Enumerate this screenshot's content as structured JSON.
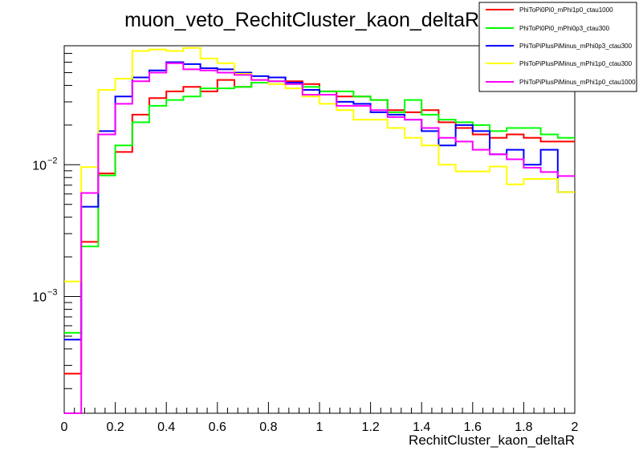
{
  "chart_data": {
    "type": "line",
    "title": "muon_veto_RechitCluster_kaon_deltaR_0",
    "xlabel": "RechitCluster_kaon_deltaR",
    "ylabel": "",
    "xlim": [
      0,
      2
    ],
    "ylim": [
      0.00013,
      0.08
    ],
    "yscale": "log",
    "grid": false,
    "legend_position": "top-right",
    "bin_edges": [
      0,
      0.0667,
      0.1333,
      0.2,
      0.2667,
      0.3333,
      0.4,
      0.4667,
      0.5333,
      0.6,
      0.6667,
      0.7333,
      0.8,
      0.8667,
      0.9333,
      1.0,
      1.0667,
      1.1333,
      1.2,
      1.2667,
      1.3333,
      1.4,
      1.4667,
      1.5333,
      1.6,
      1.6667,
      1.7333,
      1.8,
      1.8667,
      1.9333,
      2.0
    ],
    "x_ticks": [
      {
        "value": 0,
        "label": "0"
      },
      {
        "value": 0.2,
        "label": "0.2"
      },
      {
        "value": 0.4,
        "label": "0.4"
      },
      {
        "value": 0.6,
        "label": "0.6"
      },
      {
        "value": 0.8,
        "label": "0.8"
      },
      {
        "value": 1,
        "label": "1"
      },
      {
        "value": 1.2,
        "label": "1.2"
      },
      {
        "value": 1.4,
        "label": "1.4"
      },
      {
        "value": 1.6,
        "label": "1.6"
      },
      {
        "value": 1.8,
        "label": "1.8"
      },
      {
        "value": 2,
        "label": "2"
      }
    ],
    "y_ticks": [
      {
        "value": 0.001,
        "base": "10",
        "exp": "−3"
      },
      {
        "value": 0.01,
        "base": "10",
        "exp": "−2"
      }
    ],
    "series": [
      {
        "name": "PhiToPi0Pi0_mPhi1p0_ctau1000",
        "color": "#ff0000",
        "values": [
          0.00026,
          0.0026,
          0.0086,
          0.0125,
          0.024,
          0.032,
          0.036,
          0.039,
          0.036,
          0.044,
          0.039,
          0.042,
          0.046,
          0.043,
          0.041,
          0.036,
          0.033,
          0.033,
          0.031,
          0.026,
          0.025,
          0.026,
          0.021,
          0.019,
          0.017,
          0.016,
          0.017,
          0.016,
          0.015,
          0.015
        ]
      },
      {
        "name": "PhiToPi0Pi0_mPhi0p3_ctau300",
        "color": "#00ff00",
        "values": [
          0.00053,
          0.0024,
          0.0083,
          0.014,
          0.021,
          0.028,
          0.031,
          0.033,
          0.038,
          0.038,
          0.039,
          0.042,
          0.043,
          0.041,
          0.039,
          0.036,
          0.036,
          0.033,
          0.031,
          0.025,
          0.031,
          0.024,
          0.022,
          0.021,
          0.02,
          0.018,
          0.019,
          0.019,
          0.017,
          0.016
        ]
      },
      {
        "name": "PhiToPiPlusPiMinus_mPhi0p3_ctau300",
        "color": "#0000ff",
        "values": [
          0.00047,
          0.0048,
          0.018,
          0.033,
          0.046,
          0.052,
          0.06,
          0.058,
          0.054,
          0.053,
          0.05,
          0.047,
          0.046,
          0.042,
          0.037,
          0.034,
          0.03,
          0.029,
          0.025,
          0.024,
          0.022,
          0.018,
          0.014,
          0.02,
          0.018,
          0.012,
          0.013,
          0.01,
          0.013,
          0.0062
        ]
      },
      {
        "name": "PhiToPiPlusPiMinus_mPhi1p0_ctau300",
        "color": "#ffff00",
        "values": [
          0.0013,
          0.0096,
          0.037,
          0.045,
          0.073,
          0.075,
          0.073,
          0.077,
          0.064,
          0.059,
          0.049,
          0.044,
          0.041,
          0.038,
          0.033,
          0.029,
          0.026,
          0.022,
          0.022,
          0.019,
          0.016,
          0.014,
          0.01,
          0.0089,
          0.0089,
          0.0097,
          0.0071,
          0.0078,
          0.0078,
          0.0062
        ]
      },
      {
        "name": "PhiToPiPlusPiMinus_mPhi1p0_ctau1000",
        "color": "#ff00ff",
        "values": [
          0.00013,
          0.0061,
          0.017,
          0.029,
          0.043,
          0.05,
          0.059,
          0.053,
          0.052,
          0.05,
          0.048,
          0.044,
          0.043,
          0.041,
          0.034,
          0.034,
          0.028,
          0.028,
          0.026,
          0.023,
          0.022,
          0.019,
          0.016,
          0.015,
          0.013,
          0.012,
          0.011,
          0.0095,
          0.0088,
          0.0082
        ]
      }
    ]
  }
}
